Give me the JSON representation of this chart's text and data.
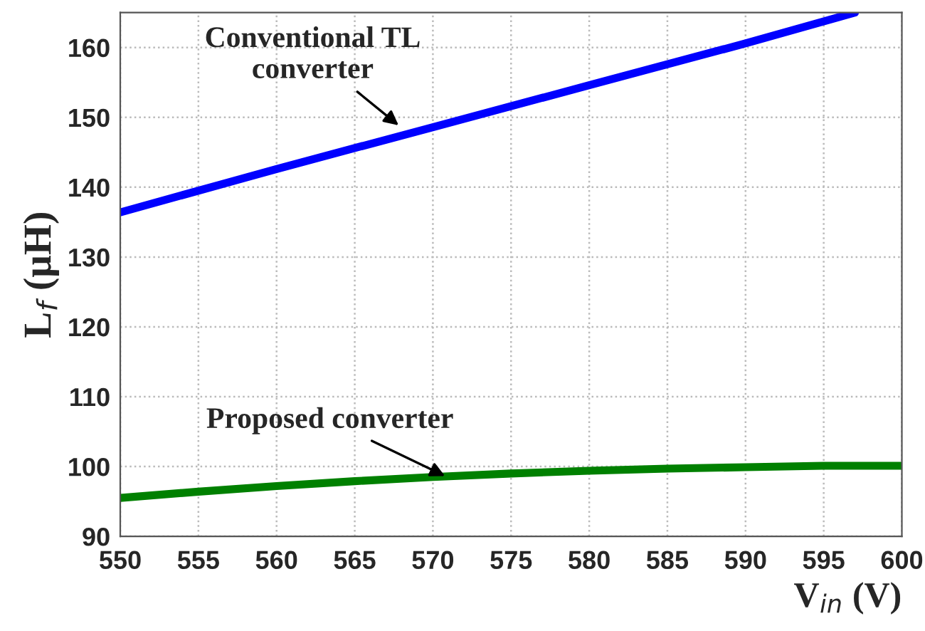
{
  "chart_data": {
    "type": "line",
    "xlabel": "V$_{in}$ (V)",
    "ylabel": "L$_{f}$ (μH)",
    "xlim": [
      550,
      600
    ],
    "xticks": [
      550,
      555,
      560,
      565,
      570,
      575,
      580,
      585,
      590,
      595,
      600
    ],
    "ylim": [
      90,
      165
    ],
    "yticks": [
      90,
      100,
      110,
      120,
      130,
      140,
      150,
      160
    ],
    "grid": true,
    "line_style": "solid",
    "series": [
      {
        "color": "#0000ff",
        "x": [
          550,
          560,
          570,
          580,
          590,
          597
        ],
        "values": [
          136.4,
          142.6,
          148.6,
          154.6,
          160.6,
          165
        ]
      },
      {
        "color": "#008000",
        "x": [
          550,
          555,
          560,
          565,
          570,
          575,
          580,
          585,
          590,
          595,
          600
        ],
        "values": [
          95.5,
          96.4,
          97.2,
          97.9,
          98.5,
          99.0,
          99.4,
          99.7,
          99.9,
          100.1,
          100.1
        ]
      }
    ],
    "annotations": [
      {
        "text": "Conventional TL\nconverter",
        "x": 568,
        "y": 148.5
      },
      {
        "text": "Proposed converter",
        "x": 571,
        "y": 98.4
      }
    ]
  }
}
